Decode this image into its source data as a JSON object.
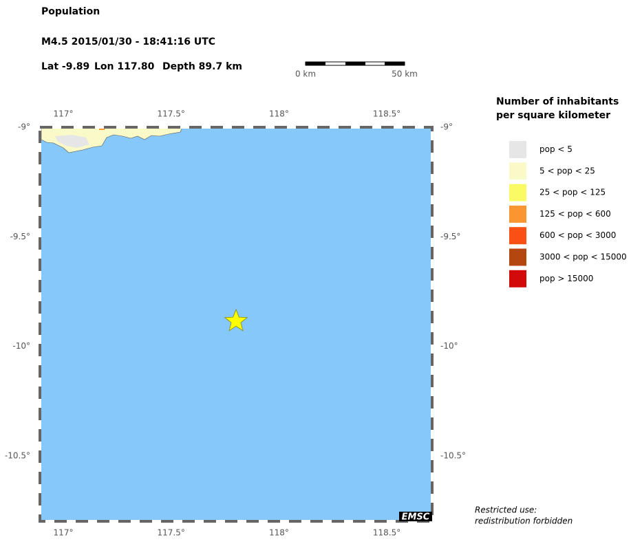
{
  "header": {
    "title": "Population",
    "event": "M4.5  2015/01/30 - 18:41:16 UTC",
    "lat": "Lat -9.89",
    "lon": "Lon 117.80",
    "depth": "Depth  89.7 km"
  },
  "scale_bar": {
    "start_label": "0 km",
    "end_label": "50 km"
  },
  "map": {
    "lon_ticks": [
      "117°",
      "117.5°",
      "118°",
      "118.5°"
    ],
    "lat_ticks": [
      "-9°",
      "-9.5°",
      "-10°",
      "-10.5°"
    ],
    "badge": "EMSC"
  },
  "legend": {
    "title_lines": [
      "Number of inhabitants",
      "per square kilometer"
    ],
    "items": [
      {
        "label": "pop < 5",
        "color": "#e6e6e6"
      },
      {
        "label": "5 < pop < 25",
        "color": "#fafac8"
      },
      {
        "label": "25 < pop < 125",
        "color": "#fafa64"
      },
      {
        "label": "125 < pop < 600",
        "color": "#fa9632"
      },
      {
        "label": "600 < pop < 3000",
        "color": "#fa5014"
      },
      {
        "label": "3000 < pop < 15000",
        "color": "#b4460f"
      },
      {
        "label": "pop > 15000",
        "color": "#d20a0a"
      }
    ]
  },
  "notice": {
    "lines": [
      "Restricted use:",
      "redistribution forbidden"
    ]
  }
}
